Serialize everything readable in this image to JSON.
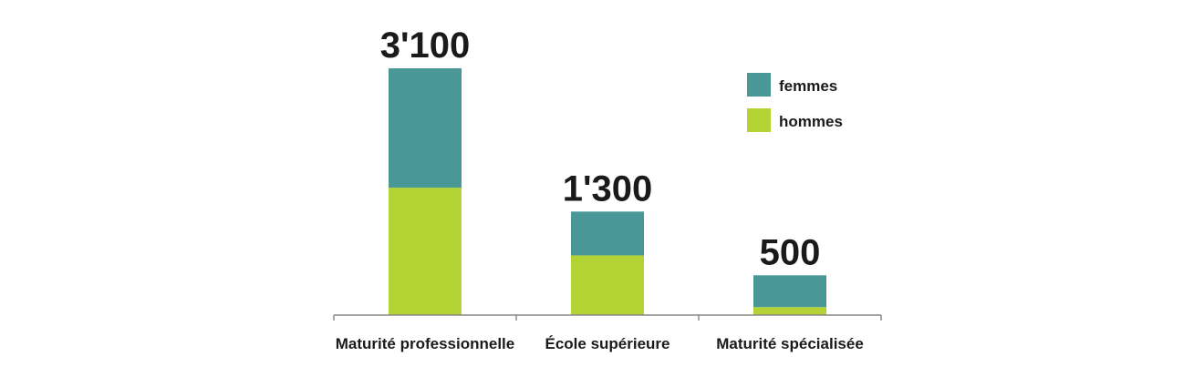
{
  "chart_data": {
    "type": "bar",
    "stacked": true,
    "categories": [
      "Maturité professionnelle",
      "École supérieure",
      "Maturité spécialisée"
    ],
    "totals_labels": [
      "3'100",
      "1'300",
      "500"
    ],
    "series": [
      {
        "name": "hommes",
        "color": "#b3d334",
        "values": [
          1600,
          750,
          100
        ]
      },
      {
        "name": "femmes",
        "color": "#4a9797",
        "values": [
          1500,
          550,
          400
        ]
      }
    ],
    "legend_order": [
      "femmes",
      "hommes"
    ],
    "legend_position": "top-right",
    "ylim": [
      0,
      3100
    ],
    "grid": false,
    "title": "",
    "xlabel": "",
    "ylabel": ""
  }
}
